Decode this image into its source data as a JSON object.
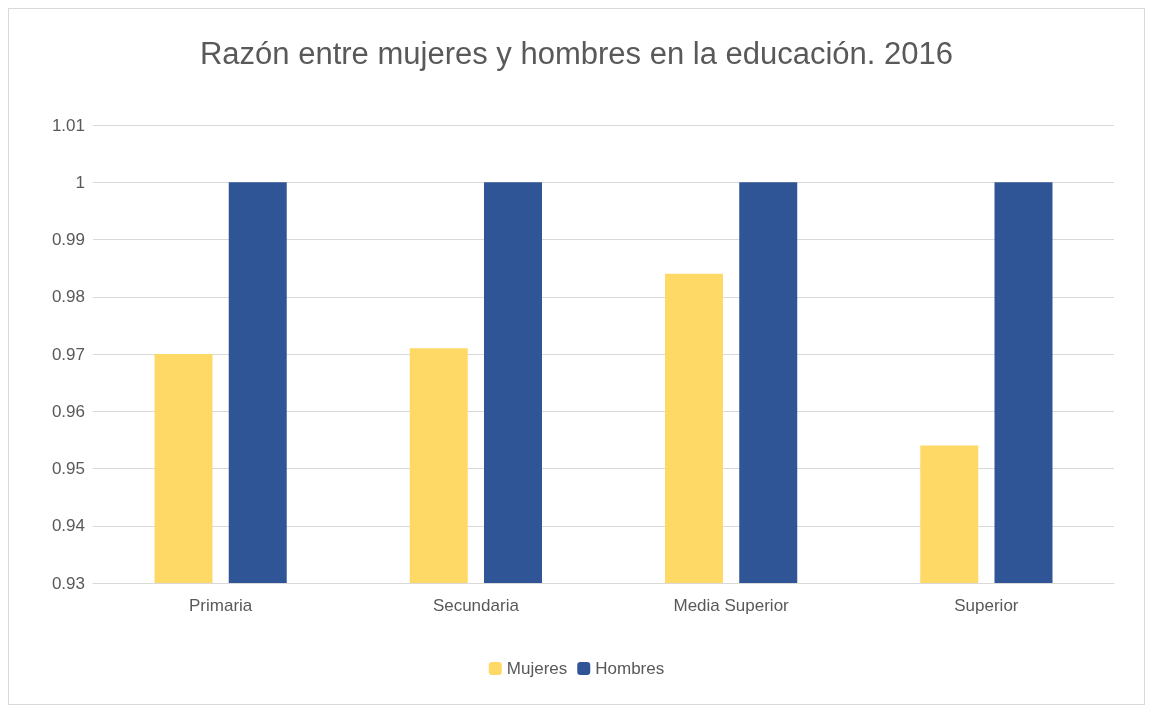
{
  "chart_data": {
    "type": "bar",
    "title": "Razón entre mujeres y hombres en la educación. 2016",
    "categories": [
      "Primaria",
      "Secundaria",
      "Media Superior",
      "Superior"
    ],
    "series": [
      {
        "name": "Mujeres",
        "color": "#ffd966",
        "values": [
          0.97,
          0.971,
          0.984,
          0.954
        ]
      },
      {
        "name": "Hombres",
        "color": "#2f5597",
        "values": [
          1,
          1,
          1,
          1
        ]
      }
    ],
    "ylim": [
      0.93,
      1.01
    ],
    "yticks": [
      0.93,
      0.94,
      0.95,
      0.96,
      0.97,
      0.98,
      0.99,
      1,
      1.01
    ],
    "grid": "y",
    "legend": "bottom"
  }
}
